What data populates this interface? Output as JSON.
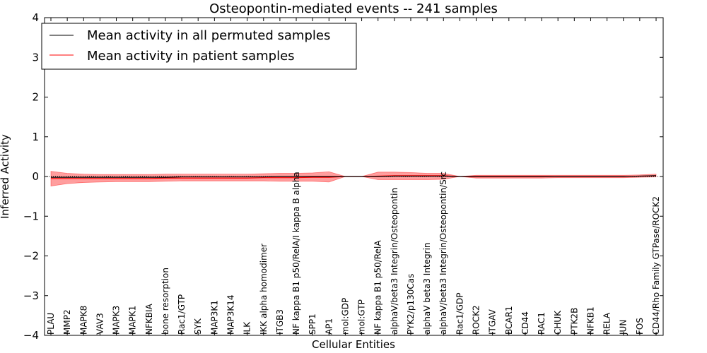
{
  "chart_data": {
    "type": "line",
    "title": "Osteopontin-mediated events -- 241 samples",
    "xlabel": "Cellular Entities",
    "ylabel": "Inferred Activity",
    "ylim": [
      -4,
      4
    ],
    "yticks": [
      -4,
      -3,
      -2,
      -1,
      0,
      1,
      2,
      3,
      4
    ],
    "legend_position": "upper-left",
    "categories": [
      "PLAU",
      "MMP2",
      "MAPK8",
      "VAV3",
      "MAPK3",
      "MAPK1",
      "NFKBIA",
      "bone resorption",
      "Rac1/GTP",
      "SYK",
      "MAP3K1",
      "MAP3K14",
      "ILK",
      "IKK alpha homodimer",
      "ITGB3",
      "NF kappa B1 p50/RelA/I kappa B alpha",
      "SPP1",
      "AP1",
      "mol:GDP",
      "mol:GTP",
      "NF kappa B1 p50/RelA",
      "alphaV/beta3 Integrin/Osteopontin",
      "PYK2/p130Cas",
      "alphaV beta3 Integrin",
      "alphaV/beta3 Integrin/Osteopontin/Src",
      "Rac1/GDP",
      "ROCK2",
      "ITGAV",
      "BCAR1",
      "CD44",
      "RAC1",
      "CHUK",
      "PTK2B",
      "NFKB1",
      "RELA",
      "JUN",
      "FOS",
      "CD44/Rho Family GTPase/ROCK2"
    ],
    "series": [
      {
        "name": "Mean activity in all permuted samples",
        "color": "#000000",
        "values": [
          -0.02,
          -0.02,
          -0.02,
          -0.02,
          -0.02,
          -0.02,
          -0.02,
          -0.02,
          -0.01,
          -0.01,
          -0.01,
          -0.01,
          -0.01,
          -0.01,
          0.0,
          0.0,
          0.0,
          0.0,
          0.0,
          0.0,
          0.0,
          0.01,
          0.01,
          0.01,
          0.01,
          0.0,
          0.0,
          0.0,
          0.0,
          0.0,
          0.0,
          0.0,
          0.0,
          0.0,
          0.0,
          0.0,
          0.01,
          0.02
        ]
      },
      {
        "name": "Mean activity in patient samples",
        "color": "#ff0000",
        "values": [
          -0.05,
          -0.05,
          -0.05,
          -0.05,
          -0.05,
          -0.05,
          -0.05,
          -0.04,
          -0.04,
          -0.04,
          -0.04,
          -0.04,
          -0.04,
          -0.03,
          -0.03,
          -0.03,
          -0.02,
          -0.02,
          0.0,
          0.0,
          0.01,
          0.02,
          0.02,
          0.02,
          0.02,
          0.0,
          -0.01,
          -0.01,
          -0.01,
          -0.01,
          -0.01,
          0.0,
          0.0,
          0.0,
          0.0,
          0.0,
          0.01,
          0.02
        ],
        "upper": [
          0.13,
          0.08,
          0.06,
          0.05,
          0.05,
          0.05,
          0.05,
          0.06,
          0.06,
          0.06,
          0.06,
          0.06,
          0.06,
          0.07,
          0.08,
          0.08,
          0.09,
          0.12,
          0.0,
          0.0,
          0.11,
          0.11,
          0.1,
          0.08,
          0.08,
          0.0,
          0.03,
          0.03,
          0.03,
          0.03,
          0.03,
          0.03,
          0.03,
          0.03,
          0.03,
          0.03,
          0.04,
          0.06
        ],
        "lower": [
          -0.24,
          -0.18,
          -0.15,
          -0.14,
          -0.13,
          -0.13,
          -0.13,
          -0.12,
          -0.11,
          -0.11,
          -0.11,
          -0.11,
          -0.11,
          -0.11,
          -0.12,
          -0.12,
          -0.12,
          -0.14,
          0.0,
          0.0,
          -0.08,
          -0.08,
          -0.08,
          -0.08,
          -0.07,
          0.0,
          -0.04,
          -0.04,
          -0.04,
          -0.04,
          -0.04,
          -0.03,
          -0.03,
          -0.03,
          -0.03,
          -0.03,
          -0.02,
          -0.01
        ]
      }
    ],
    "band_color": "#ff0000"
  }
}
